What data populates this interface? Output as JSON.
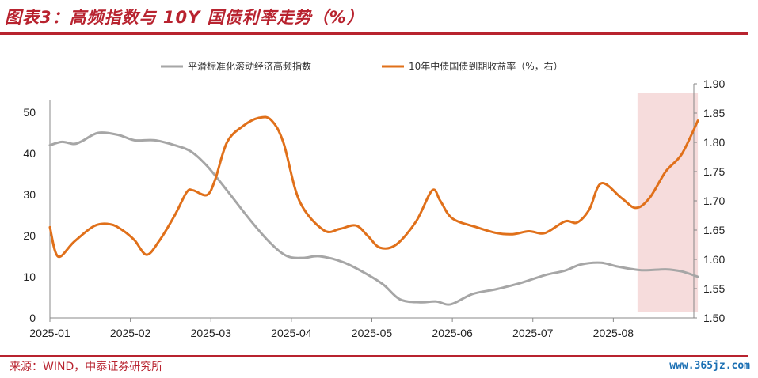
{
  "title": "图表3：高频指数与 10Y 国债利率走势（%）",
  "source": "来源：WIND，中泰证券研究所",
  "watermark": "www.365jz.com",
  "colors": {
    "accent": "#b8232f",
    "series_gray": "#a6a6a6",
    "series_orange": "#e0701a",
    "highlight": "#f6dcdc",
    "watermark": "#1a6fb3"
  },
  "chart_data": {
    "type": "line",
    "x_tick_labels": [
      "2025-01",
      "2025-02",
      "2025-03",
      "2025-04",
      "2025-05",
      "2025-06",
      "2025-07",
      "2025-08"
    ],
    "y_left": {
      "ticks": [
        0,
        10,
        20,
        30,
        40,
        50
      ],
      "lim": [
        0,
        55
      ]
    },
    "y_right": {
      "ticks": [
        "1.50",
        "1.55",
        "1.60",
        "1.65",
        "1.70",
        "1.75",
        "1.80",
        "1.85",
        "1.90"
      ],
      "lim": [
        1.5,
        1.9
      ]
    },
    "x_range_months": [
      0,
      8
    ],
    "highlight": {
      "from_month": 7.3,
      "to_month": 8.05,
      "axis": "right",
      "y_from": 1.51,
      "y_to": 1.885
    },
    "legend_position": "top-center",
    "series": [
      {
        "name": "平滑标准化滚动经济高频指数",
        "axis": "left",
        "color": "#a6a6a6",
        "points": [
          [
            0.0,
            42.0
          ],
          [
            0.15,
            42.8
          ],
          [
            0.3,
            42.3
          ],
          [
            0.4,
            43.0
          ],
          [
            0.6,
            45.0
          ],
          [
            0.85,
            44.5
          ],
          [
            1.05,
            43.2
          ],
          [
            1.3,
            43.2
          ],
          [
            1.55,
            42.0
          ],
          [
            1.75,
            40.5
          ],
          [
            1.95,
            37.0
          ],
          [
            2.2,
            31.0
          ],
          [
            2.5,
            23.5
          ],
          [
            2.75,
            18.0
          ],
          [
            2.95,
            15.0
          ],
          [
            3.15,
            14.6
          ],
          [
            3.35,
            15.0
          ],
          [
            3.65,
            13.5
          ],
          [
            3.95,
            10.5
          ],
          [
            4.15,
            8.0
          ],
          [
            4.35,
            4.5
          ],
          [
            4.6,
            3.8
          ],
          [
            4.8,
            4.0
          ],
          [
            4.98,
            3.3
          ],
          [
            5.25,
            5.8
          ],
          [
            5.55,
            7.0
          ],
          [
            5.85,
            8.5
          ],
          [
            6.15,
            10.4
          ],
          [
            6.4,
            11.5
          ],
          [
            6.6,
            13.0
          ],
          [
            6.85,
            13.4
          ],
          [
            7.05,
            12.5
          ],
          [
            7.35,
            11.6
          ],
          [
            7.65,
            11.8
          ],
          [
            7.85,
            11.3
          ],
          [
            8.05,
            10.0
          ]
        ]
      },
      {
        "name": "10年中债国债到期收益率（%，右）",
        "axis": "right",
        "color": "#e0701a",
        "points": [
          [
            0.0,
            1.655
          ],
          [
            0.1,
            1.605
          ],
          [
            0.3,
            1.63
          ],
          [
            0.55,
            1.657
          ],
          [
            0.75,
            1.66
          ],
          [
            0.9,
            1.65
          ],
          [
            1.05,
            1.633
          ],
          [
            1.2,
            1.608
          ],
          [
            1.35,
            1.63
          ],
          [
            1.55,
            1.675
          ],
          [
            1.7,
            1.715
          ],
          [
            1.78,
            1.718
          ],
          [
            1.95,
            1.71
          ],
          [
            2.05,
            1.735
          ],
          [
            2.2,
            1.8
          ],
          [
            2.4,
            1.828
          ],
          [
            2.6,
            1.842
          ],
          [
            2.75,
            1.838
          ],
          [
            2.9,
            1.8
          ],
          [
            3.1,
            1.7
          ],
          [
            3.4,
            1.65
          ],
          [
            3.6,
            1.652
          ],
          [
            3.8,
            1.658
          ],
          [
            3.95,
            1.64
          ],
          [
            4.1,
            1.62
          ],
          [
            4.3,
            1.625
          ],
          [
            4.55,
            1.665
          ],
          [
            4.75,
            1.718
          ],
          [
            4.85,
            1.7
          ],
          [
            5.0,
            1.67
          ],
          [
            5.3,
            1.655
          ],
          [
            5.55,
            1.645
          ],
          [
            5.75,
            1.643
          ],
          [
            5.95,
            1.648
          ],
          [
            6.15,
            1.645
          ],
          [
            6.4,
            1.665
          ],
          [
            6.55,
            1.663
          ],
          [
            6.7,
            1.685
          ],
          [
            6.85,
            1.73
          ],
          [
            7.1,
            1.705
          ],
          [
            7.28,
            1.688
          ],
          [
            7.45,
            1.705
          ],
          [
            7.65,
            1.75
          ],
          [
            7.85,
            1.78
          ],
          [
            8.05,
            1.837
          ]
        ]
      }
    ]
  }
}
